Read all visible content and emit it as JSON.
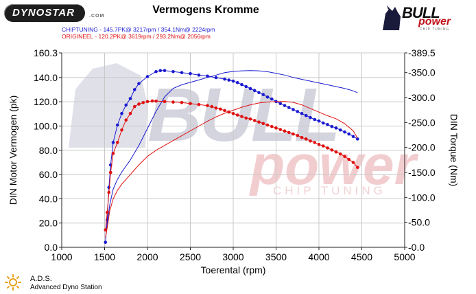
{
  "header": {
    "logo_text": "DYNOSTAR",
    "logo_suffix": ".COM",
    "title": "Vermogens Kromme",
    "legend_line1": "CHIPTUNING  - 145.7PK@ 3217rpm / 354.1Nm@ 2224rpm",
    "legend_line2": "ORIGINEEL  - 120.2PK@ 3619rpm / 293.2Nm@ 2056rpm",
    "brand_bull": "BULL",
    "brand_power": "power",
    "brand_sub": "CHIP TUNING"
  },
  "footer": {
    "ads_name": "A.D.S.",
    "ads_full": "Advanced Dyno Station"
  },
  "watermark": {
    "bull": "BULL",
    "power": "power",
    "chip": "CHIP TUNING"
  },
  "colors": {
    "chiptuning": "#1a1ad0",
    "origineel": "#e01010",
    "grid": "#c8c8c8"
  },
  "chart_data": {
    "type": "line",
    "xlabel": "Toerental (rpm)",
    "ylabel_left": "DIN Motor Vermogen (pk)",
    "ylabel_right": "DIN Torque (Nm)",
    "xlim": [
      1000,
      5000
    ],
    "xticks": [
      "1000",
      "1500",
      "2000",
      "2500",
      "3000",
      "3500",
      "4000",
      "4500",
      "5000"
    ],
    "ylim_left": [
      0,
      160.3
    ],
    "yticks_left": [
      "160.3",
      "140.0",
      "120.0",
      "100.0",
      "80.0",
      "60.0",
      "40.0",
      "20.0",
      "0.0"
    ],
    "ylim_right": [
      0,
      389.5
    ],
    "yticks_right": [
      "389.5",
      "350.0",
      "300.0",
      "250.0",
      "200.0",
      "150.0",
      "100.0",
      "50.0",
      "0.0"
    ],
    "grid": true,
    "series": [
      {
        "name": "CHIPTUNING",
        "kind": "power",
        "axis": "left",
        "x": [
          1510,
          1530,
          1560,
          1600,
          1650,
          1700,
          1800,
          1900,
          2000,
          2100,
          2200,
          2300,
          2400,
          2500,
          2600,
          2700,
          2800,
          2900,
          3000,
          3100,
          3200,
          3300,
          3400,
          3500,
          3600,
          3700,
          3800,
          3900,
          4000,
          4100,
          4200,
          4300,
          4400,
          4450
        ],
        "y": [
          8,
          18,
          35,
          48,
          56,
          62,
          72,
          84,
          98,
          112,
          124,
          131,
          134,
          136,
          138,
          140,
          142,
          144,
          145,
          145.5,
          145.7,
          145.5,
          144.8,
          143.5,
          142,
          140,
          138.5,
          137,
          135.5,
          134,
          132.5,
          131,
          129,
          127.5
        ]
      },
      {
        "name": "CHIPTUNING",
        "kind": "torque",
        "axis": "right",
        "x": [
          1510,
          1530,
          1550,
          1570,
          1600,
          1650,
          1700,
          1750,
          1800,
          1850,
          1900,
          2000,
          2100,
          2150,
          2200,
          2300,
          2400,
          2500,
          2600,
          2700,
          2800,
          2900,
          2950,
          3000,
          3050,
          3100,
          3150,
          3200,
          3250,
          3300,
          3350,
          3400,
          3450,
          3500,
          3550,
          3600,
          3650,
          3700,
          3750,
          3800,
          3850,
          3900,
          3950,
          4000,
          4050,
          4100,
          4150,
          4200,
          4250,
          4300,
          4350,
          4400,
          4450
        ],
        "y": [
          10,
          55,
          120,
          165,
          210,
          245,
          268,
          285,
          298,
          316,
          328,
          342,
          352,
          354,
          354.1,
          352,
          350,
          348,
          345,
          343,
          340,
          337,
          335,
          333,
          330,
          326,
          322,
          318,
          314,
          310,
          306,
          301,
          297,
          292,
          288,
          284,
          280,
          276,
          272,
          268,
          264,
          260,
          256,
          253,
          249,
          246,
          242,
          239,
          235,
          231,
          227,
          222,
          217
        ]
      },
      {
        "name": "ORIGINEEL",
        "kind": "power",
        "axis": "left",
        "x": [
          1510,
          1530,
          1560,
          1600,
          1650,
          1700,
          1800,
          1900,
          2000,
          2100,
          2200,
          2300,
          2400,
          2500,
          2600,
          2700,
          2800,
          2900,
          3000,
          3100,
          3200,
          3300,
          3400,
          3500,
          3600,
          3700,
          3800,
          3900,
          4000,
          4100,
          4200,
          4300,
          4400,
          4450
        ],
        "y": [
          8,
          16,
          30,
          40,
          47,
          52,
          60,
          68,
          75,
          80,
          84,
          88,
          92,
          96,
          100,
          104,
          107.5,
          110.5,
          113,
          115.5,
          117.5,
          119,
          119.8,
          120.1,
          120.2,
          119.5,
          117.5,
          114.5,
          111.5,
          108.5,
          106,
          102,
          96,
          90
        ]
      },
      {
        "name": "ORIGINEEL",
        "kind": "torque",
        "axis": "right",
        "x": [
          1510,
          1530,
          1550,
          1570,
          1600,
          1650,
          1700,
          1750,
          1800,
          1850,
          1900,
          1950,
          2000,
          2056,
          2100,
          2200,
          2300,
          2400,
          2500,
          2600,
          2700,
          2750,
          2800,
          2850,
          2900,
          2950,
          3000,
          3050,
          3100,
          3150,
          3200,
          3250,
          3300,
          3350,
          3400,
          3450,
          3500,
          3550,
          3600,
          3650,
          3700,
          3750,
          3800,
          3850,
          3900,
          3950,
          4000,
          4050,
          4100,
          4150,
          4200,
          4250,
          4300,
          4350,
          4400,
          4450
        ],
        "y": [
          35,
          70,
          110,
          150,
          188,
          210,
          235,
          255,
          268,
          282,
          287,
          290,
          292,
          293.2,
          293,
          292,
          291,
          290,
          288,
          286,
          284,
          282,
          279,
          277,
          274,
          271,
          268,
          265,
          262,
          259,
          257,
          254,
          251,
          248,
          245,
          242,
          239,
          236,
          233,
          230,
          227,
          224,
          220,
          217,
          213,
          210,
          206,
          203,
          199,
          195,
          191,
          187,
          182,
          176,
          170,
          160
        ]
      }
    ]
  }
}
